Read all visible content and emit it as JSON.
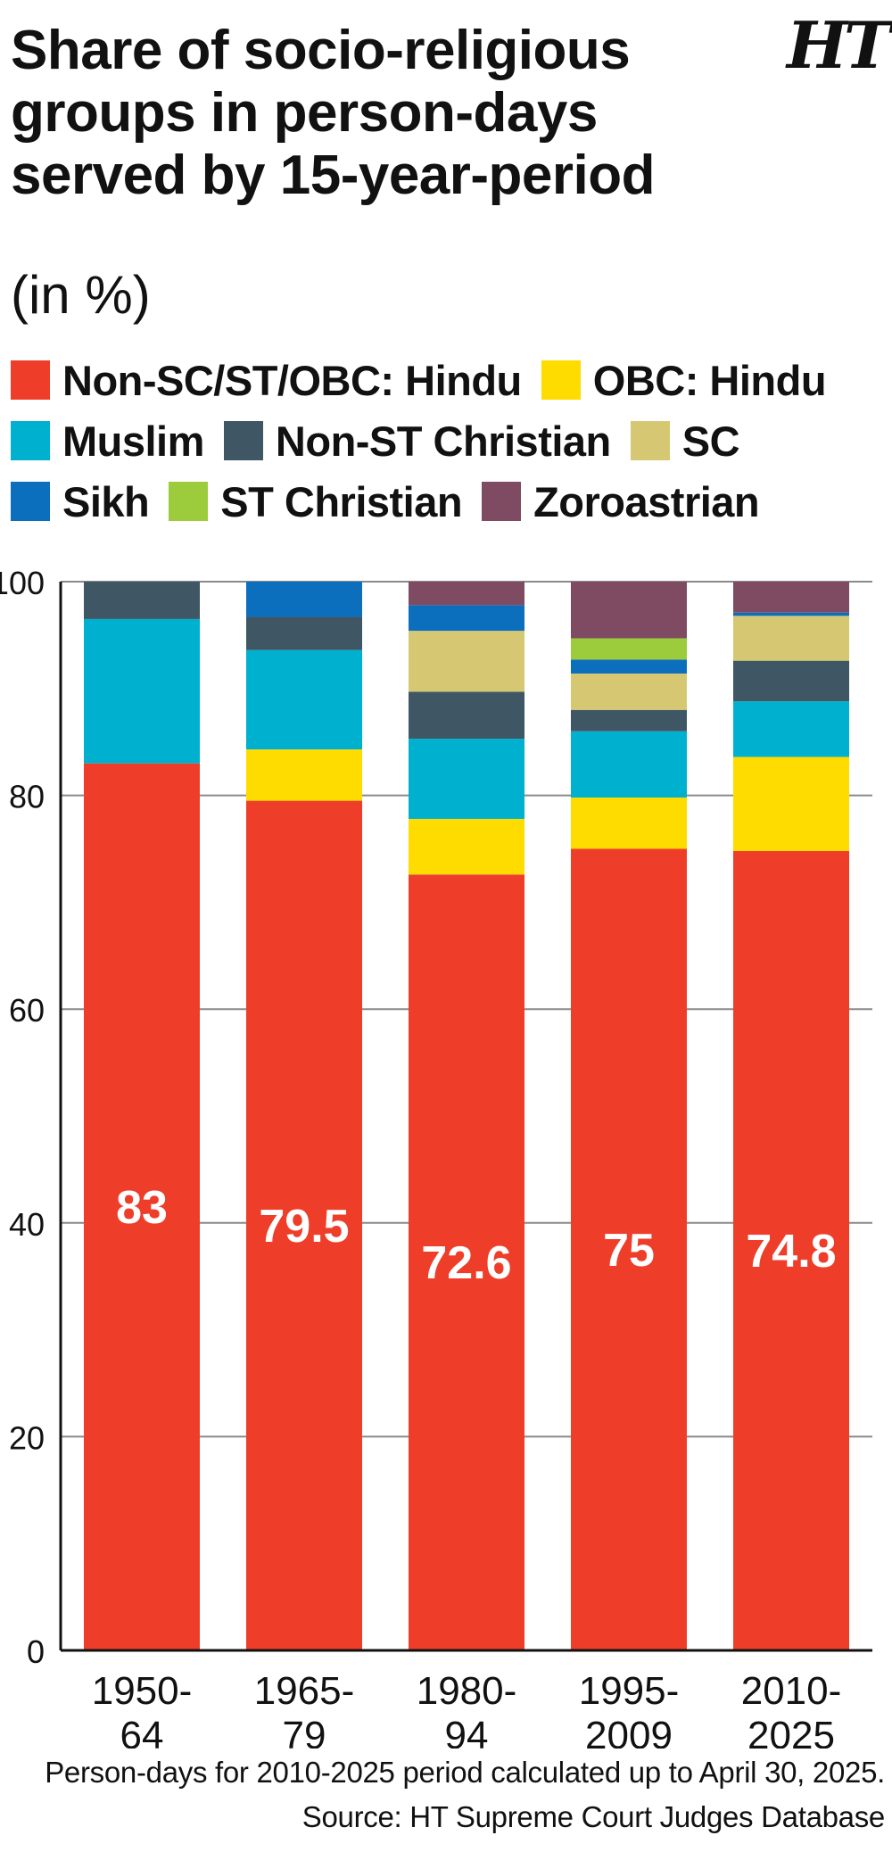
{
  "logo": "HT",
  "chart_data": {
    "type": "bar",
    "stacked": true,
    "title": "Share of socio-religious groups in person-days served by 15-year-period",
    "subtitle": "(in %)",
    "xlabel": "",
    "ylabel": "",
    "ylim": [
      0,
      100
    ],
    "yticks": [
      "0",
      "20",
      "40",
      "60",
      "80",
      "100"
    ],
    "grid": true,
    "legend_position": "top",
    "categories": [
      [
        "1950-",
        "64"
      ],
      [
        "1965-",
        "79"
      ],
      [
        "1980-",
        "94"
      ],
      [
        "1995-",
        "2009"
      ],
      [
        "2010-",
        "2025"
      ]
    ],
    "series": [
      {
        "name": "Non-SC/ST/OBC: Hindu",
        "color": "#ee3e2a",
        "values": [
          83,
          79.5,
          72.6,
          75,
          74.8
        ],
        "labels": [
          "83",
          "79.5",
          "72.6",
          "75",
          "74.8"
        ]
      },
      {
        "name": "OBC: Hindu",
        "color": "#ffdc00",
        "values": [
          0,
          4.8,
          5.2,
          4.8,
          8.8
        ]
      },
      {
        "name": "Muslim",
        "color": "#00b1cf",
        "values": [
          13.5,
          9.3,
          7.5,
          6.2,
          5.2
        ]
      },
      {
        "name": "Non-ST Christian",
        "color": "#3f5664",
        "values": [
          3.5,
          3.1,
          4.4,
          2.0,
          3.8
        ]
      },
      {
        "name": "SC",
        "color": "#d6c872",
        "values": [
          0,
          0,
          5.7,
          3.4,
          4.2
        ]
      },
      {
        "name": "Sikh",
        "color": "#0c6fbe",
        "values": [
          0,
          3.3,
          2.4,
          1.3,
          0.3
        ]
      },
      {
        "name": "ST Christian",
        "color": "#9ccc3c",
        "values": [
          0,
          0,
          0,
          2.0,
          0
        ]
      },
      {
        "name": "Zoroastrian",
        "color": "#7e4b63",
        "values": [
          0,
          0,
          2.2,
          5.3,
          2.9
        ]
      }
    ],
    "notes": [
      "Person-days for 2010-2025 period calculated up to April 30, 2025.",
      "Source: HT Supreme Court Judges Database"
    ]
  }
}
